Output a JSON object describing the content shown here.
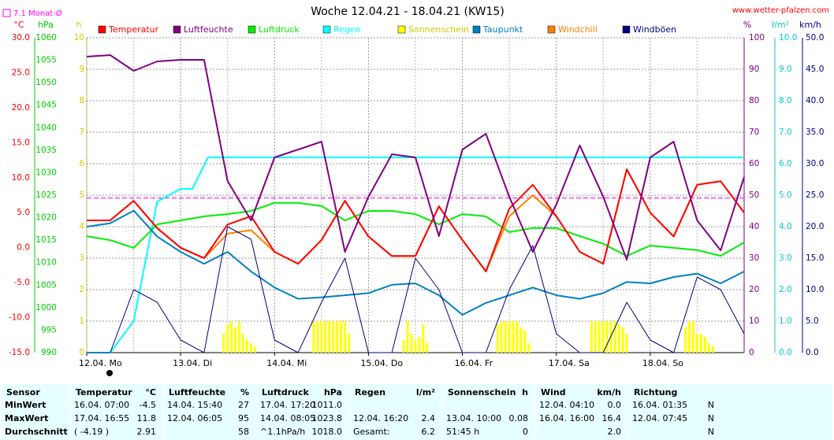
{
  "chart_data": {
    "type": "line",
    "title": "Woche 12.04.21 - 18.04.21 (KW15)",
    "source": "www.wetter-pfalzen.com",
    "monthly_average": {
      "label": "7.1 Monat-Ø",
      "value": 7.1,
      "color": "#ff00ff",
      "axis": "c"
    },
    "grid": true,
    "xlim": [
      0,
      168
    ],
    "xticks": [
      {
        "value": 0,
        "label": "12.04. Mo"
      },
      {
        "value": 24,
        "label": "13.04. Di"
      },
      {
        "value": 48,
        "label": "14.04. Mi"
      },
      {
        "value": 72,
        "label": "15.04. Do"
      },
      {
        "value": 96,
        "label": "16.04. Fr"
      },
      {
        "value": 120,
        "label": "17.04. Sa"
      },
      {
        "value": 144,
        "label": "18.04. So"
      }
    ],
    "axes": [
      {
        "id": "c",
        "label": "°C",
        "side": "left",
        "color": "#ff0000",
        "lim": [
          -15,
          30
        ],
        "ticks": [
          {
            "value": -15,
            "label": "-15.0"
          },
          {
            "value": -10,
            "label": "-10.0"
          },
          {
            "value": -5,
            "label": "-5.0"
          },
          {
            "value": 0,
            "label": "0.0"
          },
          {
            "value": 5,
            "label": "5.0"
          },
          {
            "value": 10,
            "label": "10.0"
          },
          {
            "value": 15,
            "label": "15.0"
          },
          {
            "value": 20,
            "label": "20.0"
          },
          {
            "value": 25,
            "label": "25.0"
          },
          {
            "value": 30,
            "label": "30.0"
          }
        ]
      },
      {
        "id": "hpa",
        "label": "hPa",
        "side": "left",
        "color": "#00cc00",
        "lim": [
          990,
          1060
        ],
        "ticks": [
          990,
          995,
          1000,
          1005,
          1010,
          1015,
          1020,
          1025,
          1030,
          1035,
          1040,
          1045,
          1050,
          1055,
          1060
        ]
      },
      {
        "id": "h",
        "label": "h",
        "side": "left",
        "color": "#cccc00",
        "lim": [
          0,
          10
        ],
        "ticks": [
          0,
          1,
          2,
          3,
          4,
          5,
          6,
          7,
          8,
          9,
          10
        ]
      },
      {
        "id": "pct",
        "label": "%",
        "side": "right",
        "color": "#800080",
        "lim": [
          0,
          100
        ],
        "ticks": [
          0,
          10,
          20,
          30,
          40,
          50,
          60,
          70,
          80,
          90,
          100
        ]
      },
      {
        "id": "rain",
        "label": "l/m²",
        "side": "right",
        "color": "#00cccc",
        "lim": [
          0,
          10
        ],
        "ticks": [
          {
            "value": 0,
            "label": "0.0"
          },
          {
            "value": 1,
            "label": "1.0"
          },
          {
            "value": 2,
            "label": "2.0"
          },
          {
            "value": 3,
            "label": "3.0"
          },
          {
            "value": 4,
            "label": "4.0"
          },
          {
            "value": 5,
            "label": "5.0"
          },
          {
            "value": 6,
            "label": "6.0"
          },
          {
            "value": 7,
            "label": "7.0"
          },
          {
            "value": 8,
            "label": "8.0"
          },
          {
            "value": 9,
            "label": "9.0"
          },
          {
            "value": 10,
            "label": "10.0"
          }
        ]
      },
      {
        "id": "kmh",
        "label": "km/h",
        "side": "right",
        "color": "#000080",
        "lim": [
          0,
          50
        ],
        "ticks": [
          {
            "value": 0,
            "label": "0.0"
          },
          {
            "value": 5,
            "label": "5.0"
          },
          {
            "value": 10,
            "label": "10.0"
          },
          {
            "value": 15,
            "label": "15.0"
          },
          {
            "value": 20,
            "label": "20.0"
          },
          {
            "value": 25,
            "label": "25.0"
          },
          {
            "value": 30,
            "label": "30.0"
          },
          {
            "value": 35,
            "label": "35.0"
          },
          {
            "value": 40,
            "label": "40.0"
          },
          {
            "value": 45,
            "label": "45.0"
          },
          {
            "value": 50,
            "label": "50.0"
          }
        ]
      }
    ],
    "x": [
      0,
      6,
      12,
      18,
      24,
      30,
      36,
      42,
      48,
      54,
      60,
      66,
      72,
      78,
      84,
      90,
      96,
      102,
      108,
      114,
      120,
      126,
      132,
      138,
      144,
      150,
      156,
      162,
      168
    ],
    "series": [
      {
        "name": "Temperatur",
        "color": "#ff0000",
        "axis": "c",
        "type": "line",
        "values": [
          3.9,
          3.9,
          6.7,
          2.8,
          0,
          -1.5,
          3.3,
          4.5,
          -0.6,
          -2.3,
          1.1,
          6.7,
          1.6,
          -1.2,
          -1.2,
          5.9,
          1.1,
          -3.4,
          5.6,
          9.0,
          4.5,
          -0.6,
          -2.3,
          11.2,
          5.0,
          1.6,
          9.0,
          9.5,
          5.0
        ]
      },
      {
        "name": "Luftfeuchte",
        "color": "#800080",
        "axis": "pct",
        "type": "line",
        "values": [
          94,
          94.5,
          89.5,
          92.5,
          93,
          93,
          54.5,
          42,
          62,
          64.5,
          67,
          32,
          49.5,
          63,
          62,
          37,
          64.5,
          69.5,
          49.5,
          32,
          47,
          65.8,
          49.5,
          29.5,
          62,
          67,
          42,
          32.5,
          55.8
        ]
      },
      {
        "name": "Luftdruck",
        "color": "#00ee00",
        "axis": "hpa",
        "type": "line",
        "values": [
          1015.9,
          1015,
          1013.3,
          1018.5,
          1019.4,
          1020.3,
          1020.8,
          1021.5,
          1023.3,
          1023.3,
          1022.6,
          1019.4,
          1021.5,
          1021.5,
          1020.8,
          1018.5,
          1020.8,
          1020.3,
          1016.8,
          1017.7,
          1017.7,
          1015.9,
          1014.2,
          1011.5,
          1013.8,
          1013.3,
          1012.8,
          1011.5,
          1014.5
        ]
      },
      {
        "name": "Regen",
        "color": "#00ffff",
        "axis": "rain",
        "type": "line",
        "x": [
          0,
          6,
          12,
          18,
          24,
          27,
          31,
          168
        ],
        "values": [
          0,
          0,
          1.0,
          4.8,
          5.2,
          5.2,
          6.2,
          6.2
        ]
      },
      {
        "name": "Sonnenschein",
        "color": "#ffff00",
        "axis": "h",
        "type": "bar",
        "x": [
          35,
          36,
          37,
          38,
          39,
          40,
          41,
          42,
          43,
          58,
          59,
          60,
          61,
          62,
          63,
          64,
          65,
          66,
          67,
          81,
          82,
          83,
          84,
          85,
          86,
          87,
          105,
          106,
          107,
          108,
          109,
          110,
          111,
          112,
          113,
          129,
          130,
          131,
          132,
          133,
          134,
          135,
          136,
          137,
          138,
          153,
          154,
          155,
          156,
          157,
          158,
          159,
          160
        ],
        "values": [
          0.6,
          0.9,
          1.0,
          0.8,
          1.0,
          0.6,
          0.4,
          0.3,
          0.2,
          1.0,
          1.0,
          1.0,
          1.0,
          1.0,
          1.0,
          1.0,
          1.0,
          1.0,
          0.6,
          0.4,
          1.0,
          0.6,
          0.4,
          0.5,
          0.9,
          0.3,
          0.9,
          1.0,
          1.0,
          1.0,
          1.0,
          1.0,
          0.8,
          0.7,
          0.3,
          1.0,
          1.0,
          1.0,
          1.0,
          1.0,
          1.0,
          1.0,
          0.9,
          0.8,
          0.6,
          0.8,
          1.0,
          1.0,
          0.6,
          0.6,
          0.5,
          0.3,
          0.2
        ]
      },
      {
        "name": "Taupunkt",
        "color": "#0080c0",
        "axis": "c",
        "type": "line",
        "values": [
          3.0,
          3.5,
          5.3,
          1.6,
          -0.6,
          -2.3,
          -0.6,
          -3.4,
          -5.7,
          -7.3,
          -7.1,
          -6.8,
          -6.5,
          -5.3,
          -5.1,
          -6.8,
          -9.6,
          -7.9,
          -6.8,
          -5.7,
          -6.8,
          -7.3,
          -6.5,
          -4.9,
          -5.1,
          -4.2,
          -3.7,
          -5.1,
          -3.4
        ]
      },
      {
        "name": "Windchill",
        "color": "#ff8000",
        "axis": "c",
        "type": "line",
        "values": [
          3.9,
          3.9,
          6.7,
          2.8,
          0,
          -1.5,
          2.0,
          2.5,
          -0.6,
          -2.3,
          1.1,
          6.7,
          1.6,
          -1.2,
          -1.2,
          5.9,
          1.1,
          -3.4,
          4.5,
          7.5,
          4.5,
          -0.6,
          -2.3,
          11.2,
          5.0,
          1.6,
          9.0,
          9.5,
          5.0
        ]
      },
      {
        "name": "Windböen",
        "color": "#000080",
        "axis": "kmh",
        "type": "line",
        "thin": true,
        "values": [
          0,
          0,
          10,
          8,
          2,
          0,
          20,
          18,
          2,
          0,
          8,
          15,
          0,
          0,
          15,
          10,
          0,
          0,
          10,
          17,
          3,
          0,
          0,
          8,
          2,
          0,
          12,
          10,
          3
        ]
      }
    ]
  },
  "table": {
    "headers": [
      {
        "name": "Sensor"
      },
      {
        "name": "Temperatur",
        "unit": "°C"
      },
      {
        "name": "Luftfeuchte",
        "unit": "%"
      },
      {
        "name": "Luftdruck",
        "unit": "hPa"
      },
      {
        "name": "Regen",
        "unit": "l/m²"
      },
      {
        "name": "Sonnenschein",
        "unit": "h"
      },
      {
        "name": "Wind",
        "unit": "km/h"
      },
      {
        "name": "Richtung"
      }
    ],
    "rows": [
      {
        "label": "MinWert",
        "cells": [
          [
            "16.04.  07:00",
            "-4.5"
          ],
          [
            "14.04.  15:40",
            "27"
          ],
          [
            "17.04.  17:20",
            "1011.0"
          ],
          [
            null,
            null
          ],
          [
            null,
            null
          ],
          [
            "12.04.  04:10",
            "0.0"
          ],
          [
            "16.04.  01:35",
            "N"
          ]
        ]
      },
      {
        "label": "MaxWert",
        "cells": [
          [
            "17.04.  16:55",
            "11.8"
          ],
          [
            "12.04.  06:05",
            "95"
          ],
          [
            "14.04.  08:05",
            "1023.8"
          ],
          [
            "12.04.  16:20",
            "2.4"
          ],
          [
            "13.04.  10:00",
            "0.08"
          ],
          [
            "16.04.  16:00",
            "16.4"
          ],
          [
            "12.04.  07:45",
            "N"
          ]
        ]
      },
      {
        "label": "Durchschnitt",
        "cells": [
          [
            "( -4.19 )",
            "2.91"
          ],
          [
            null,
            "58"
          ],
          [
            "^1.1hPa/h",
            "1018.0"
          ],
          [
            "Gesamt:",
            "6.2"
          ],
          [
            "51:45 h",
            "0"
          ],
          [
            null,
            "2.0"
          ],
          [
            null,
            "N"
          ]
        ]
      }
    ]
  }
}
